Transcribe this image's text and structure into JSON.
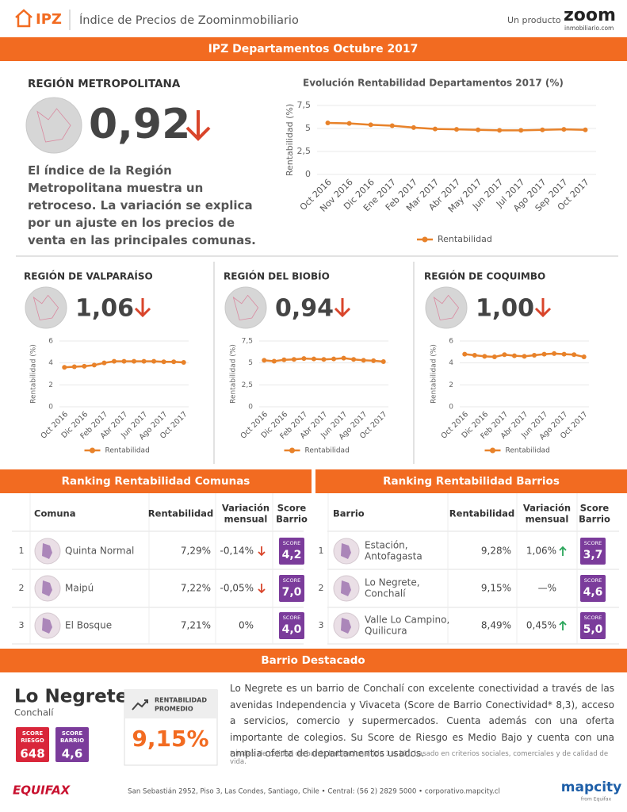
{
  "header": {
    "logo": "IPZ",
    "title": "Índice de Precios de Zoominmobiliario",
    "product_label": "Un producto",
    "brand": "zoom",
    "brand_sub": "inmobiliario.com"
  },
  "banner": "IPZ Departamentos Octubre 2017",
  "metropolitana": {
    "region": "REGIÓN METROPOLITANA",
    "index": "0,92",
    "description": "El índice de la Región Metropolitana muestra un retroceso. La variación se explica por un ajuste en los precios de venta en las principales comunas."
  },
  "regions": [
    {
      "region": "REGIÓN DE VALPARAÍSO",
      "index": "1,06"
    },
    {
      "region": "REGIÓN DEL BIOBÍO",
      "index": "0,94"
    },
    {
      "region": "REGIÓN DE COQUIMBO",
      "index": "1,00"
    }
  ],
  "chart_data": [
    {
      "type": "line",
      "title": "Evolución Rentabilidad Departamentos 2017 (%)",
      "ylabel": "Rentabilidad (%)",
      "categories": [
        "Oct 2016",
        "Nov 2016",
        "Dic 2016",
        "Ene 2017",
        "Feb 2017",
        "Mar 2017",
        "Abr 2017",
        "May 2017",
        "Jun 2017",
        "Jul 2017",
        "Ago 2017",
        "Sep 2017",
        "Oct 2017"
      ],
      "series": [
        {
          "name": "Rentabilidad",
          "color": "#e8822a",
          "values": [
            5.6,
            5.55,
            5.4,
            5.3,
            5.1,
            4.95,
            4.9,
            4.85,
            4.8,
            4.8,
            4.85,
            4.9,
            4.85
          ]
        }
      ],
      "ylim": [
        0,
        7.5
      ],
      "yticks": [
        0,
        {
          "value": 2.5,
          "label": "2,5"
        },
        5,
        {
          "value": 7.5,
          "label": "7,5"
        }
      ],
      "grid": true,
      "legend": "bottom"
    },
    {
      "type": "line",
      "ylabel": "Rentabilidad (%)",
      "categories": [
        "Oct 2016",
        null,
        "Dic 2016",
        null,
        "Feb 2017",
        null,
        "Abr 2017",
        null,
        "Jun 2017",
        null,
        "Ago 2017",
        null,
        "Oct 2017"
      ],
      "series": [
        {
          "name": "Rentabilidad",
          "color": "#e8822a",
          "values": [
            3.6,
            3.65,
            3.7,
            3.8,
            4.0,
            4.15,
            4.15,
            4.15,
            4.15,
            4.15,
            4.1,
            4.1,
            4.05
          ]
        }
      ],
      "ylim": [
        0,
        6
      ],
      "yticks": [
        0,
        2,
        4,
        6
      ],
      "grid": true,
      "legend": "bottom"
    },
    {
      "type": "line",
      "ylabel": "Rentabilidad (%)",
      "categories": [
        "Oct 2016",
        null,
        "Dic 2016",
        null,
        "Feb 2017",
        null,
        "Abr 2017",
        null,
        "Jun 2017",
        null,
        "Ago 2017",
        null,
        "Oct 2017"
      ],
      "series": [
        {
          "name": "Rentabilidad",
          "color": "#e8822a",
          "values": [
            5.3,
            5.2,
            5.35,
            5.4,
            5.5,
            5.45,
            5.4,
            5.45,
            5.55,
            5.4,
            5.3,
            5.25,
            5.15
          ]
        }
      ],
      "ylim": [
        0,
        7.5
      ],
      "yticks": [
        0,
        {
          "value": 2.5,
          "label": "2,5"
        },
        5,
        {
          "value": 7.5,
          "label": "7,5"
        }
      ],
      "grid": true,
      "legend": "bottom"
    },
    {
      "type": "line",
      "ylabel": "Rentabilidad (%)",
      "categories": [
        "Oct 2016",
        null,
        "Dic 2016",
        null,
        "Feb 2017",
        null,
        "Abr 2017",
        null,
        "Jun 2017",
        null,
        "Ago 2017",
        null,
        "Oct 2017"
      ],
      "series": [
        {
          "name": "Rentabilidad",
          "color": "#e8822a",
          "values": [
            4.8,
            4.7,
            4.6,
            4.55,
            4.75,
            4.65,
            4.6,
            4.7,
            4.8,
            4.85,
            4.8,
            4.75,
            4.55
          ]
        }
      ],
      "ylim": [
        0,
        6
      ],
      "yticks": [
        0,
        2,
        4,
        6
      ],
      "grid": true,
      "legend": "bottom"
    }
  ],
  "ranking_comunas": {
    "title": "Ranking Rentabilidad Comunas",
    "columns": [
      [
        "Comuna"
      ],
      [
        "Rentabilidad"
      ],
      [
        "Variación",
        "mensual"
      ],
      [
        "Score",
        "Barrio"
      ]
    ],
    "rows": [
      {
        "rank": "1",
        "name": [
          "Quinta Normal"
        ],
        "rentabilidad": "7,29%",
        "variacion": "-0,14%",
        "trend": "down",
        "score_label": "SCORE",
        "score": "4,2"
      },
      {
        "rank": "2",
        "name": [
          "Maipú"
        ],
        "rentabilidad": "7,22%",
        "variacion": "-0,05%",
        "trend": "down",
        "score_label": "SCORE",
        "score": "7,0"
      },
      {
        "rank": "3",
        "name": [
          "El Bosque"
        ],
        "rentabilidad": "7,21%",
        "variacion": "0%",
        "trend": null,
        "score_label": "SCORE",
        "score": "4,0"
      }
    ]
  },
  "ranking_barrios": {
    "title": "Ranking Rentabilidad Barrios",
    "columns": [
      [
        "Barrio"
      ],
      [
        "Rentabilidad"
      ],
      [
        "Variación",
        "mensual"
      ],
      [
        "Score",
        "Barrio"
      ]
    ],
    "rows": [
      {
        "rank": "1",
        "name": [
          "Estación,",
          "Antofagasta"
        ],
        "rentabilidad": "9,28%",
        "variacion": "1,06%",
        "trend": "up",
        "score_label": "SCORE",
        "score": "3,7"
      },
      {
        "rank": "2",
        "name": [
          "Lo Negrete,",
          "Conchalí"
        ],
        "rentabilidad": "9,15%",
        "variacion": "—%",
        "trend": null,
        "score_label": "SCORE",
        "score": "4,6"
      },
      {
        "rank": "3",
        "name": [
          "Valle Lo Campino,",
          "Quilicura"
        ],
        "rentabilidad": "8,49%",
        "variacion": "0,45%",
        "trend": "up",
        "score_label": "SCORE",
        "score": "5,0"
      }
    ]
  },
  "featured": {
    "banner": "Barrio Destacado",
    "name": "Lo Negrete",
    "comuna": "Conchalí",
    "badges": [
      {
        "label": [
          "SCORE",
          "RIESGO"
        ],
        "value": "648",
        "color": "#d9263a"
      },
      {
        "label": [
          "SCORE",
          "BARRIO"
        ],
        "value": "4,6",
        "color": "#7b3c9b"
      }
    ],
    "kpi_label": [
      "RENTABILIDAD",
      "PROMEDIO"
    ],
    "kpi_value": "9,15%",
    "description": "Lo Negrete es un barrio de Conchalí con excelente conectividad a través de las avenidas Independencia y Vivaceta (Score de Barrio Conectividad* 8,3), acceso a servicios, comercio y supermercados. Cuenta además con una oferta importante de colegios. Su Score de Riesgo es Medio Bajo y cuenta con una amplia oferta de departamentos usados.",
    "footnote": "* Índice de calidad de barrio habitacional (de 1 a 10), basado en criterios sociales, comerciales y de calidad de vida."
  },
  "footer": {
    "equifax": "EQUIFAX",
    "address": "San Sebastián 2952, Piso 3, Las Condes, Santiago, Chile • Central: (56 2) 2829 5000 • corporativo.mapcity.cl",
    "mapcity": "mapcity",
    "mapcity_sub": "from Equifax"
  }
}
